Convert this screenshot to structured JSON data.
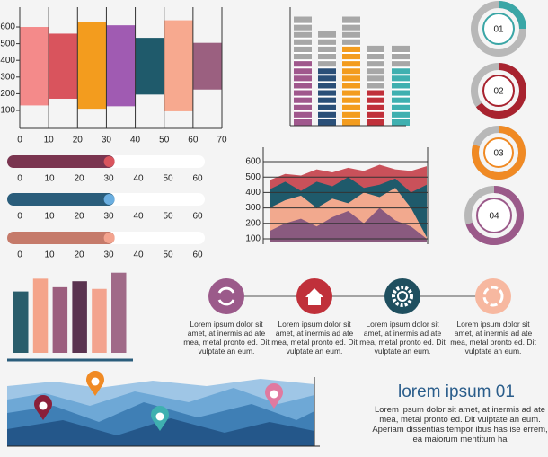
{
  "chart_data": [
    {
      "type": "floating-bar",
      "bins": [
        0,
        10,
        20,
        30,
        40,
        50,
        60,
        70
      ],
      "lows": [
        130,
        170,
        110,
        125,
        195,
        95,
        225
      ],
      "highs": [
        600,
        560,
        630,
        610,
        535,
        640,
        505
      ],
      "colors": [
        "#f48a8a",
        "#d9545d",
        "#f39c1e",
        "#a05bb2",
        "#1f5a6b",
        "#f7a98f",
        "#9b6080"
      ],
      "xlim": [
        0,
        70
      ],
      "xticks": [
        0,
        10,
        20,
        30,
        40,
        50,
        60,
        70
      ],
      "ylim": [
        0,
        720
      ],
      "yticks": [
        100,
        200,
        300,
        400,
        500,
        600
      ],
      "grid": "x"
    },
    {
      "type": "stacked-bar",
      "ylim": [
        0,
        16
      ],
      "series": [
        {
          "colors": [
            "#a0588d",
            "#2a4f78",
            "#f39c1e",
            "#c0303a",
            "#3fb0b0"
          ],
          "values": [
            9,
            8,
            11,
            5,
            8
          ]
        },
        {
          "color": "#a7a7a7",
          "values": [
            6,
            5,
            4,
            6,
            3
          ]
        }
      ]
    },
    {
      "type": "donut",
      "labels": [
        "01",
        "02",
        "03",
        "04"
      ],
      "values": [
        25,
        65,
        80,
        70
      ],
      "colors": [
        "#3aa6a6",
        "#a8232f",
        "#f08a24",
        "#9b5a8a"
      ]
    },
    {
      "type": "progress",
      "xlim": [
        0,
        60
      ],
      "xticks": [
        0,
        10,
        20,
        30,
        40,
        50,
        60
      ],
      "values": [
        32,
        32,
        32
      ],
      "colors": [
        "#7a3550",
        "#2a5d7b",
        "#c57a6a"
      ]
    },
    {
      "type": "area",
      "ylim": [
        80,
        660
      ],
      "yticks": [
        100,
        200,
        300,
        400,
        500,
        600
      ],
      "grid": true,
      "series": [
        {
          "color": "#c9515a",
          "values": [
            480,
            520,
            510,
            550,
            530,
            560,
            540,
            580,
            550,
            540,
            570
          ]
        },
        {
          "color": "#1f5a6b",
          "values": [
            420,
            470,
            410,
            470,
            440,
            500,
            430,
            450,
            490,
            400,
            450
          ]
        },
        {
          "color": "#f2a98e",
          "values": [
            300,
            350,
            380,
            300,
            360,
            330,
            400,
            370,
            430,
            300,
            110
          ]
        },
        {
          "color": "#8a5a7f",
          "values": [
            150,
            200,
            230,
            180,
            240,
            280,
            200,
            300,
            220,
            180,
            100
          ]
        }
      ]
    },
    {
      "type": "bar",
      "ylim": [
        0,
        100
      ],
      "values": [
        72,
        87,
        77,
        84,
        75,
        94
      ],
      "colors": [
        "#2a5d6b",
        "#f4a48a",
        "#9c5e7e",
        "#5a3350",
        "#f3a38e",
        "#a06a88"
      ]
    }
  ],
  "timeline": {
    "items": [
      {
        "text": "Lorem ipsum dolor sit amet, at inermis ad ate mea, metal pronto ed. Dit vulptate an eum."
      },
      {
        "text": "Lorem ipsum dolor sit amet, at inermis ad ate mea, metal pronto ed. Dit vulptate an eum."
      },
      {
        "text": "Lorem ipsum dolor sit amet, at inermis ad ate mea, metal pronto ed. Dit vulptate an eum."
      },
      {
        "text": "Lorem ipsum dolor sit amet, at inermis ad ate mea, metal pronto ed. Dit vulptate an eum."
      }
    ]
  },
  "text_block": {
    "title": "lorem ipsum 01",
    "body": "Lorem ipsum dolor sit amet, at inermis ad ate mea, metal pronto ed. Dit vulptate an eum. Aperiam dissentias tempor ibus has ise errem, ea maiorum mentitum ha"
  }
}
